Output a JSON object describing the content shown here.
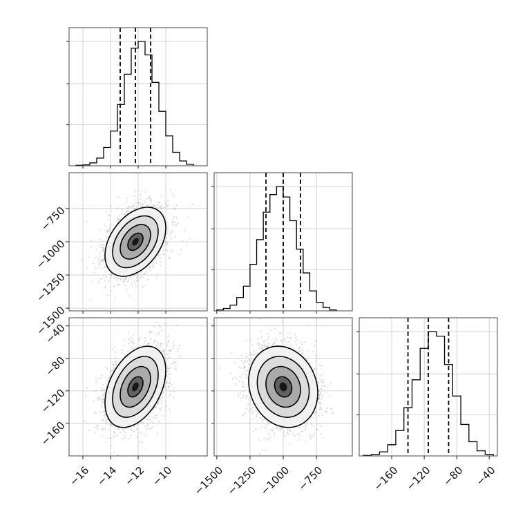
{
  "chart_data": {
    "type": "corner",
    "parameters": [
      {
        "mean": -12.2,
        "sd": 1.1,
        "q16": -13.3,
        "q50": -12.2,
        "q84": -11.1,
        "range": [
          -17.0,
          -7.0
        ],
        "ticks": [
          -16,
          -14,
          -12,
          -10
        ],
        "tick_labels": [
          "−16",
          "−14",
          "−12",
          "−10"
        ]
      },
      {
        "mean": -1000,
        "sd": 130,
        "q16": -1130,
        "q50": -1000,
        "q84": -870,
        "range": [
          -1520,
          -480
        ],
        "ticks": [
          -1500,
          -1250,
          -1000,
          -750
        ],
        "tick_labels": [
          "−1500",
          "−1250",
          "−1000",
          "−750"
        ]
      },
      {
        "mean": -115,
        "sd": 25,
        "q16": -140,
        "q50": -115,
        "q84": -90,
        "range": [
          -200,
          -30
        ],
        "ticks": [
          -160,
          -120,
          -80,
          -40
        ],
        "tick_labels": [
          "−160",
          "−120",
          "−80",
          "−40"
        ]
      }
    ],
    "correlations": {
      "0-1": 0.4,
      "0-2": 0.4,
      "1-2": -0.15
    },
    "panels": [
      {
        "id": "hist-p1",
        "kind": "histogram",
        "param": 0,
        "bins": [
          -16.5,
          -16.0,
          -15.5,
          -15.0,
          -14.5,
          -14.0,
          -13.5,
          -13.0,
          -12.5,
          -12.0,
          -11.5,
          -11.0,
          -10.5,
          -10.0,
          -9.5,
          -9.0,
          -8.5,
          -8.0
        ],
        "counts": [
          1,
          2,
          6,
          16,
          38,
          72,
          127,
          190,
          244,
          258,
          230,
          173,
          113,
          62,
          28,
          10,
          3
        ],
        "quantiles": [
          -13.3,
          -12.2,
          -11.1
        ]
      },
      {
        "id": "hist-p2",
        "kind": "histogram",
        "param": 1,
        "bins": [
          -1500,
          -1450,
          -1400,
          -1350,
          -1300,
          -1250,
          -1200,
          -1150,
          -1100,
          -1050,
          -1000,
          -950,
          -900,
          -850,
          -800,
          -750,
          -700,
          -650,
          -600
        ],
        "counts": [
          2,
          5,
          12,
          28,
          52,
          98,
          150,
          208,
          245,
          262,
          240,
          190,
          130,
          80,
          42,
          18,
          7,
          2
        ],
        "quantiles": [
          -1130,
          -1000,
          -870
        ]
      },
      {
        "id": "hist-p3",
        "kind": "histogram",
        "param": 2,
        "bins": [
          -195,
          -185,
          -175,
          -165,
          -155,
          -145,
          -135,
          -125,
          -115,
          -105,
          -95,
          -85,
          -75,
          -65,
          -55,
          -45,
          -35
        ],
        "counts": [
          1,
          3,
          8,
          22,
          50,
          95,
          150,
          212,
          245,
          236,
          180,
          118,
          62,
          28,
          10,
          3
        ],
        "quantiles": [
          -140,
          -115,
          -90
        ]
      },
      {
        "id": "scatter-p1-p2",
        "kind": "density",
        "x_param": 0,
        "y_param": 1
      },
      {
        "id": "scatter-p1-p3",
        "kind": "density",
        "x_param": 0,
        "y_param": 2
      },
      {
        "id": "scatter-p2-p3",
        "kind": "density",
        "x_param": 1,
        "y_param": 2
      }
    ],
    "contour_levels_sigma": [
      0.5,
      1.0,
      1.5,
      2.0
    ],
    "grid": true
  }
}
